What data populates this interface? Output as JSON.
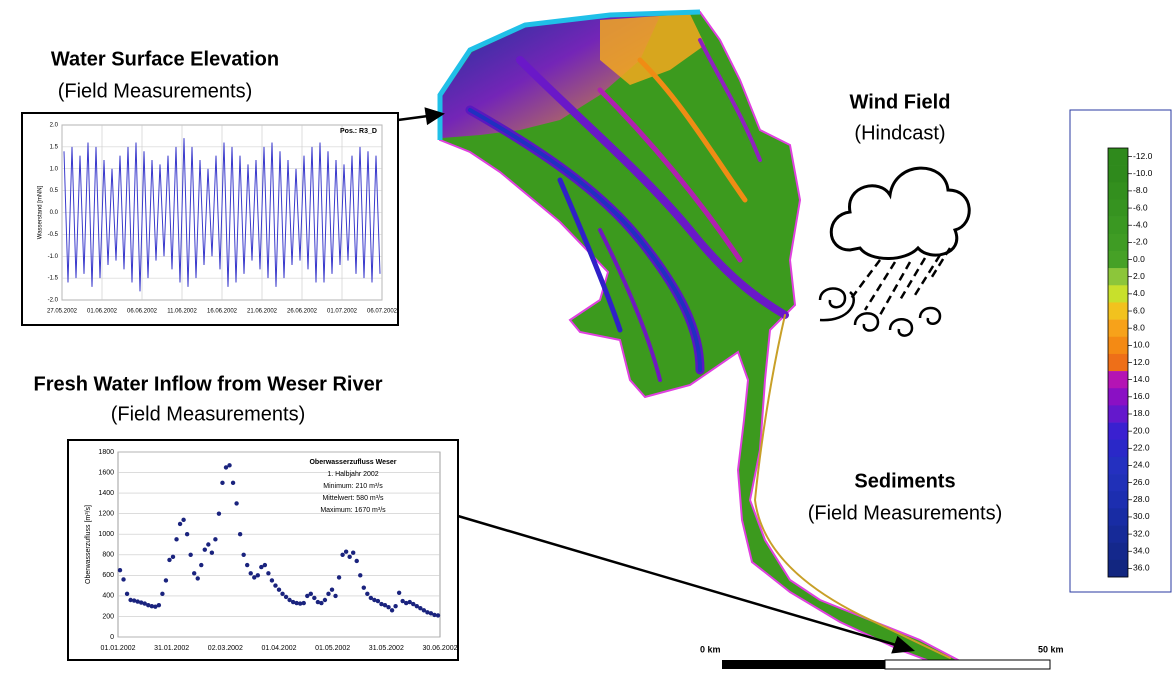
{
  "labels": {
    "wse_title": "Water Surface Elevation",
    "wse_sub": "(Field Measurements)",
    "inflow_title": "Fresh Water Inflow from Weser River",
    "inflow_sub": "(Field Measurements)",
    "wind_title": "Wind Field",
    "wind_sub": "(Hindcast)",
    "sed_title": "Sediments",
    "sed_sub": "(Field Measurements)"
  },
  "chart_data": [
    {
      "type": "line",
      "color": "#3a3acc",
      "y_label": "Wasserstand [mNN]",
      "annotation": "Pos.: R3_D",
      "xticks": [
        "27.05.2002",
        "01.06.2002",
        "06.06.2002",
        "11.06.2002",
        "16.06.2002",
        "21.06.2002",
        "26.06.2002",
        "01.07.2002",
        "06.07.2002"
      ],
      "ylim": [
        -2,
        2
      ],
      "yticks": [
        {
          "value": -2,
          "label": "-2.0"
        },
        {
          "value": -1.5,
          "label": "-1.5"
        },
        {
          "value": -1,
          "label": "-1.0"
        },
        {
          "value": -0.5,
          "label": "-0.5"
        },
        {
          "value": 0,
          "label": "0.0"
        },
        {
          "value": 0.5,
          "label": "0.5"
        },
        {
          "value": 1,
          "label": "1.0"
        },
        {
          "value": 1.5,
          "label": "1.5"
        },
        {
          "value": 2,
          "label": "2.0"
        }
      ],
      "grid": true,
      "values": [
        1.4,
        -1.6,
        1.5,
        -1.5,
        1.3,
        -1.4,
        1.6,
        -1.7,
        1.5,
        -1.5,
        1.2,
        -1.2,
        1.0,
        -1.1,
        1.3,
        -1.3,
        1.5,
        -1.6,
        1.6,
        -1.8,
        1.4,
        -1.5,
        1.2,
        -1.1,
        1.1,
        -1.0,
        1.3,
        -1.3,
        1.5,
        -1.6,
        1.7,
        -1.7,
        1.5,
        -1.5,
        1.2,
        -1.2,
        1.0,
        -1.0,
        1.3,
        -1.3,
        1.6,
        -1.7,
        1.5,
        -1.6,
        1.3,
        -1.4,
        1.1,
        -1.1,
        1.2,
        -1.3,
        1.5,
        -1.5,
        1.6,
        -1.7,
        1.4,
        -1.5,
        1.2,
        -1.2,
        1.0,
        -1.1,
        1.3,
        -1.3,
        1.5,
        -1.6,
        1.6,
        -1.6,
        1.4,
        -1.4,
        1.2,
        -1.2,
        1.1,
        -1.1,
        1.3,
        -1.4,
        1.5,
        -1.5,
        1.4,
        -1.6,
        1.3,
        -1.4
      ]
    },
    {
      "type": "scatter",
      "color": "#1a237e",
      "y_label": "Oberwasserzufluss [m³/s]",
      "annotations": [
        "Oberwasserzufluss Weser",
        "1. Halbjahr 2002",
        "Minimum: 210 m³/s",
        "Mittelwert: 580 m³/s",
        "Maximum: 1670 m³/s"
      ],
      "xticks": [
        "01.01.2002",
        "31.01.2002",
        "02.03.2002",
        "01.04.2002",
        "01.05.2002",
        "31.05.2002",
        "30.06.2002"
      ],
      "ylim": [
        0,
        1800
      ],
      "yticks": [
        0,
        200,
        400,
        600,
        800,
        1000,
        1200,
        1400,
        1600,
        1800
      ],
      "grid": true,
      "values": [
        650,
        560,
        420,
        360,
        355,
        345,
        335,
        325,
        310,
        300,
        295,
        310,
        420,
        550,
        750,
        780,
        950,
        1100,
        1140,
        1000,
        800,
        620,
        570,
        700,
        850,
        900,
        820,
        950,
        1200,
        1500,
        1650,
        1670,
        1500,
        1300,
        1000,
        800,
        700,
        620,
        580,
        600,
        680,
        700,
        620,
        550,
        500,
        460,
        420,
        390,
        360,
        340,
        330,
        325,
        330,
        400,
        420,
        380,
        340,
        330,
        360,
        420,
        460,
        400,
        580,
        800,
        830,
        780,
        820,
        740,
        600,
        480,
        420,
        380,
        360,
        350,
        320,
        310,
        290,
        260,
        300,
        430,
        350,
        330,
        340,
        320,
        300,
        280,
        260,
        240,
        230,
        215,
        210
      ]
    }
  ],
  "colorbar": {
    "items": [
      {
        "value": -12,
        "label": "-12.0",
        "color": "#2f8a1c"
      },
      {
        "value": -10,
        "label": "-10.0",
        "color": "#2f8a1c"
      },
      {
        "value": -8,
        "label": "-8.0",
        "color": "#338f1e"
      },
      {
        "value": -6,
        "label": "-6.0",
        "color": "#369320"
      },
      {
        "value": -4,
        "label": "-4.0",
        "color": "#3a9822"
      },
      {
        "value": -2,
        "label": "-2.0",
        "color": "#3f9c24"
      },
      {
        "value": 0,
        "label": "0.0",
        "color": "#46a126"
      },
      {
        "value": 2,
        "label": "2.0",
        "color": "#8cc63a"
      },
      {
        "value": 4,
        "label": "4.0",
        "color": "#c8e02c"
      },
      {
        "value": 6,
        "label": "6.0",
        "color": "#f2c21e"
      },
      {
        "value": 8,
        "label": "8.0",
        "color": "#f7a21a"
      },
      {
        "value": 10,
        "label": "10.0",
        "color": "#f48a14"
      },
      {
        "value": 12,
        "label": "12.0",
        "color": "#ee6f18"
      },
      {
        "value": 14,
        "label": "14.0",
        "color": "#b414b4"
      },
      {
        "value": 16,
        "label": "16.0",
        "color": "#8a10c4"
      },
      {
        "value": 18,
        "label": "18.0",
        "color": "#6418cc"
      },
      {
        "value": 20,
        "label": "20.0",
        "color": "#3a20d0"
      },
      {
        "value": 22,
        "label": "22.0",
        "color": "#2a28c8"
      },
      {
        "value": 24,
        "label": "24.0",
        "color": "#2430c0"
      },
      {
        "value": 26,
        "label": "26.0",
        "color": "#2030b8"
      },
      {
        "value": 28,
        "label": "28.0",
        "color": "#1c2eb0"
      },
      {
        "value": 30,
        "label": "30.0",
        "color": "#182ca4"
      },
      {
        "value": 32,
        "label": "32.0",
        "color": "#162a98"
      },
      {
        "value": 34,
        "label": "34.0",
        "color": "#14288c"
      },
      {
        "value": 36,
        "label": "36.0",
        "color": "#122680"
      }
    ]
  },
  "scale_bar": {
    "start": "0 km",
    "end": "50 km"
  }
}
